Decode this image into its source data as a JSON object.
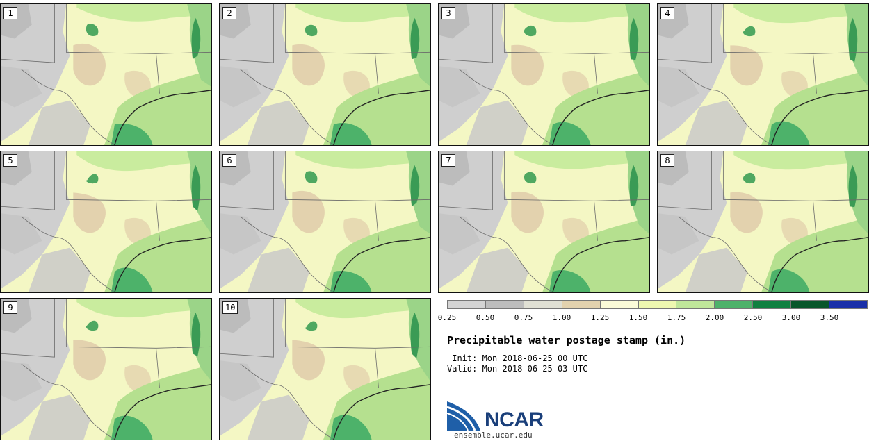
{
  "stamps": [
    {
      "label": "1"
    },
    {
      "label": "2"
    },
    {
      "label": "3"
    },
    {
      "label": "4"
    },
    {
      "label": "5"
    },
    {
      "label": "6"
    },
    {
      "label": "7"
    },
    {
      "label": "8"
    },
    {
      "label": "9"
    },
    {
      "label": "10"
    }
  ],
  "legend": {
    "ticks": [
      "0.25",
      "0.50",
      "0.75",
      "1.00",
      "1.25",
      "1.50",
      "1.75",
      "2.00",
      "2.50",
      "3.00",
      "3.50"
    ],
    "colors": [
      "#d4d4d4",
      "#bdbdbd",
      "#e0e0d4",
      "#e3d2ae",
      "#fbfbd8",
      "#eef8b0",
      "#bfe69a",
      "#4db26a",
      "#0f8040",
      "#08562a",
      "#1a2fa8"
    ]
  },
  "title": "Precipitable water postage stamp (in.)",
  "init": " Init: Mon 2018-06-25 00 UTC",
  "valid": "Valid: Mon 2018-06-25 03 UTC",
  "brand": {
    "name": "NCAR",
    "url": "ensemble.ucar.edu"
  }
}
